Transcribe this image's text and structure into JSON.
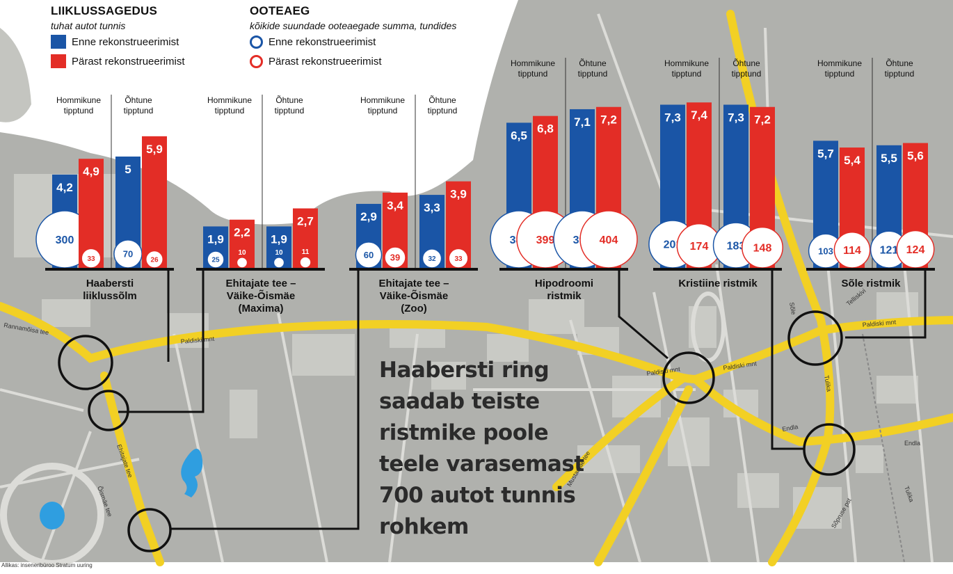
{
  "legend": {
    "traffic": {
      "title": "LIIKLUSSAGEDUS",
      "subtitle": "tuhat autot tunnis",
      "before": "Enne rekonstrueerimist",
      "after": "Pärast rekonstrueerimist"
    },
    "wait": {
      "title": "OOTEAEG",
      "subtitle": "kõikide suundade ooteaegade summa, tundides",
      "before": "Enne rekonstrueerimist",
      "after": "Pärast rekonstrueerimist"
    }
  },
  "headline": "Haabersti ring saadab teiste ristmike poole teele varasemast 700 autot tunnis rohkem",
  "source": "Allikas: inseneribüroo Stratum uuring",
  "colors": {
    "before": "#1a55a6",
    "after": "#e32d26",
    "road": "#f2d024",
    "map": "#a9aaa6",
    "map_light": "#c9cac5",
    "water": "#2f9ee0",
    "line": "#111111"
  },
  "map_labels": [
    {
      "text": "Paldiski mnt"
    },
    {
      "text": "Paldiski mnt"
    },
    {
      "text": "Paldiski mnt"
    },
    {
      "text": "Paldiski mnt"
    },
    {
      "text": "Rannamõisa tee"
    },
    {
      "text": "Ehitajate tee"
    },
    {
      "text": "Õismäe tee"
    },
    {
      "text": "Mustamäe tee"
    },
    {
      "text": "Sõle"
    },
    {
      "text": "Tulika"
    },
    {
      "text": "Endla"
    },
    {
      "text": "Endla"
    },
    {
      "text": "Sõpruse pst"
    },
    {
      "text": "Telliskivi"
    },
    {
      "text": "Tulika"
    }
  ],
  "chart_data": {
    "type": "bar",
    "unit_bars": "tuhat autot tunnis",
    "unit_circles": "tundides",
    "series": [
      {
        "name": "Enne rekonstrueerimist"
      },
      {
        "name": "Pärast rekonstrueerimist"
      }
    ],
    "period_labels": [
      "Hommikune tipptund",
      "Õhtune tipptund"
    ],
    "groups": [
      {
        "name": "Haabersti liiklussõlm",
        "morning": {
          "before": 4.2,
          "after": 4.9,
          "wait_before": 300,
          "wait_after": 33
        },
        "evening": {
          "before": 5,
          "after": 5.9,
          "wait_before": 70,
          "wait_after": 26
        }
      },
      {
        "name": "Ehitajate tee – Väike-Õismäe (Maxima)",
        "morning": {
          "before": 1.9,
          "after": 2.2,
          "wait_before": 25,
          "wait_after": 10
        },
        "evening": {
          "before": 1.9,
          "after": 2.7,
          "wait_before": 10,
          "wait_after": 11
        }
      },
      {
        "name": "Ehitajate tee – Väike-Õismäe (Zoo)",
        "morning": {
          "before": 2.9,
          "after": 3.4,
          "wait_before": 60,
          "wait_after": 39
        },
        "evening": {
          "before": 3.3,
          "after": 3.9,
          "wait_before": 32,
          "wait_after": 33
        }
      },
      {
        "name": "Hipodroomi ristmik",
        "morning": {
          "before": 6.5,
          "after": 6.8,
          "wait_before": 385,
          "wait_after": 399
        },
        "evening": {
          "before": 7.1,
          "after": 7.2,
          "wait_before": 395,
          "wait_after": 404
        }
      },
      {
        "name": "Kristiine ristmik",
        "morning": {
          "before": 7.3,
          "after": 7.4,
          "wait_before": 201,
          "wait_after": 174
        },
        "evening": {
          "before": 7.3,
          "after": 7.2,
          "wait_before": 183,
          "wait_after": 148
        }
      },
      {
        "name": "Sõle ristmik",
        "morning": {
          "before": 5.7,
          "after": 5.4,
          "wait_before": 103,
          "wait_after": 114
        },
        "evening": {
          "before": 5.5,
          "after": 5.6,
          "wait_before": 121,
          "wait_after": 124
        }
      }
    ]
  }
}
